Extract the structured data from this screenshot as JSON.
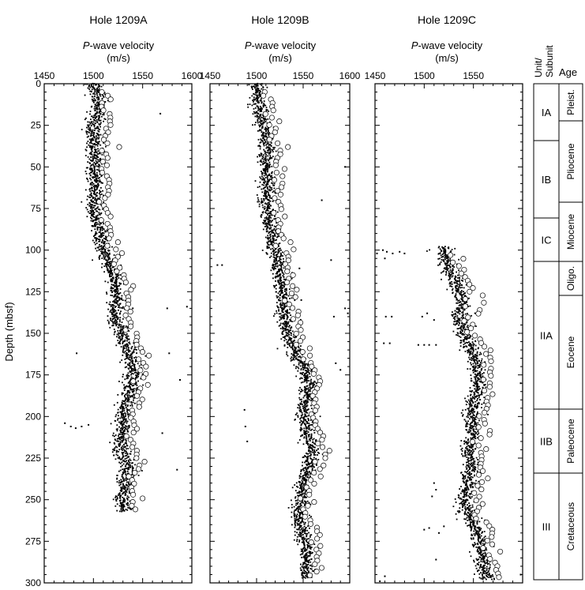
{
  "figure": {
    "ylabel": "Depth (mbsf)",
    "y_ticks": [
      0,
      25,
      50,
      75,
      100,
      125,
      150,
      175,
      200,
      225,
      250,
      275,
      300
    ],
    "ylim": [
      0,
      300
    ],
    "xlabel_main": "-wave velocity",
    "xlabel_italic": "P",
    "xlabel_unit": "(m/s)",
    "colors": {
      "points": "#000000",
      "frame": "#000000",
      "background": "#ffffff"
    }
  },
  "chart_data": [
    {
      "type": "scatter",
      "title": "Hole 1209A",
      "xlim": [
        1450,
        1600
      ],
      "ylim": [
        300,
        0
      ],
      "x_ticks": [
        1450,
        1500,
        1550,
        1600
      ],
      "trend": [
        [
          1,
          1500
        ],
        [
          10,
          1505
        ],
        [
          20,
          1503
        ],
        [
          30,
          1500
        ],
        [
          40,
          1502
        ],
        [
          50,
          1500
        ],
        [
          60,
          1503
        ],
        [
          70,
          1500
        ],
        [
          80,
          1502
        ],
        [
          90,
          1507
        ],
        [
          100,
          1510
        ],
        [
          110,
          1517
        ],
        [
          120,
          1522
        ],
        [
          130,
          1525
        ],
        [
          140,
          1522
        ],
        [
          150,
          1528
        ],
        [
          160,
          1535
        ],
        [
          170,
          1540
        ],
        [
          180,
          1540
        ],
        [
          190,
          1535
        ],
        [
          200,
          1530
        ],
        [
          210,
          1530
        ],
        [
          220,
          1528
        ],
        [
          230,
          1535
        ],
        [
          240,
          1532
        ],
        [
          250,
          1530
        ],
        [
          257,
          1530
        ]
      ],
      "depth_range": [
        0,
        257
      ],
      "spread": 4,
      "outliers": [
        [
          1483,
          162
        ],
        [
          1540,
          135
        ],
        [
          1575,
          135
        ],
        [
          1595,
          134
        ],
        [
          1588,
          178
        ],
        [
          1577,
          162
        ],
        [
          1600,
          190
        ],
        [
          1568,
          18
        ],
        [
          1570,
          210
        ],
        [
          1585,
          232
        ],
        [
          1471,
          204
        ],
        [
          1477,
          206
        ],
        [
          1482,
          207
        ],
        [
          1488,
          206
        ],
        [
          1495,
          205
        ]
      ],
      "circle_offset": 12
    },
    {
      "type": "scatter",
      "title": "Hole 1209B",
      "xlim": [
        1450,
        1600
      ],
      "ylim": [
        300,
        0
      ],
      "x_ticks": [
        1450,
        1500,
        1550,
        1600
      ],
      "trend": [
        [
          1,
          1500
        ],
        [
          10,
          1502
        ],
        [
          20,
          1505
        ],
        [
          30,
          1510
        ],
        [
          40,
          1512
        ],
        [
          50,
          1510
        ],
        [
          60,
          1512
        ],
        [
          70,
          1510
        ],
        [
          80,
          1513
        ],
        [
          90,
          1517
        ],
        [
          100,
          1520
        ],
        [
          110,
          1523
        ],
        [
          120,
          1527
        ],
        [
          130,
          1528
        ],
        [
          140,
          1530
        ],
        [
          150,
          1533
        ],
        [
          160,
          1540
        ],
        [
          170,
          1550
        ],
        [
          180,
          1557
        ],
        [
          190,
          1552
        ],
        [
          200,
          1550
        ],
        [
          210,
          1555
        ],
        [
          220,
          1560
        ],
        [
          230,
          1557
        ],
        [
          240,
          1550
        ],
        [
          250,
          1548
        ],
        [
          260,
          1545
        ],
        [
          270,
          1550
        ],
        [
          280,
          1555
        ],
        [
          290,
          1553
        ],
        [
          297,
          1552
        ]
      ],
      "depth_range": [
        0,
        297
      ],
      "spread": 4,
      "outliers": [
        [
          1458,
          109
        ],
        [
          1463,
          109
        ],
        [
          1546,
          111
        ],
        [
          1580,
          106
        ],
        [
          1598,
          138
        ],
        [
          1595,
          135
        ],
        [
          1583,
          140
        ],
        [
          1585,
          168
        ],
        [
          1590,
          172
        ],
        [
          1487,
          196
        ],
        [
          1488,
          206
        ],
        [
          1490,
          215
        ],
        [
          1548,
          130
        ],
        [
          1595,
          50
        ],
        [
          1570,
          70
        ]
      ],
      "circle_offset": 11
    },
    {
      "type": "scatter",
      "title": "Hole 1209C",
      "xlim": [
        1450,
        1600
      ],
      "ylim": [
        300,
        0
      ],
      "x_ticks": [
        1450,
        1500,
        1550
      ],
      "trend": [
        [
          100,
          1520
        ],
        [
          110,
          1525
        ],
        [
          120,
          1532
        ],
        [
          130,
          1540
        ],
        [
          140,
          1535
        ],
        [
          150,
          1540
        ],
        [
          160,
          1548
        ],
        [
          170,
          1555
        ],
        [
          180,
          1555
        ],
        [
          190,
          1550
        ],
        [
          200,
          1548
        ],
        [
          210,
          1550
        ],
        [
          220,
          1545
        ],
        [
          230,
          1548
        ],
        [
          240,
          1545
        ],
        [
          250,
          1540
        ],
        [
          260,
          1545
        ],
        [
          270,
          1555
        ],
        [
          280,
          1558
        ],
        [
          290,
          1560
        ],
        [
          298,
          1565
        ]
      ],
      "depth_range": [
        98,
        298
      ],
      "spread": 4,
      "outliers": [
        [
          1452,
          102
        ],
        [
          1458,
          100
        ],
        [
          1462,
          101
        ],
        [
          1468,
          102
        ],
        [
          1475,
          101
        ],
        [
          1480,
          102
        ],
        [
          1460,
          105
        ],
        [
          1498,
          140
        ],
        [
          1503,
          138
        ],
        [
          1510,
          142
        ],
        [
          1494,
          157
        ],
        [
          1500,
          157
        ],
        [
          1505,
          157
        ],
        [
          1512,
          157
        ],
        [
          1459,
          156
        ],
        [
          1465,
          156
        ],
        [
          1461,
          140
        ],
        [
          1467,
          140
        ],
        [
          1510,
          240
        ],
        [
          1512,
          244
        ],
        [
          1508,
          248
        ],
        [
          1512,
          286
        ],
        [
          1500,
          268
        ],
        [
          1505,
          267
        ],
        [
          1515,
          270
        ],
        [
          1520,
          266
        ],
        [
          1598,
          180
        ],
        [
          1598,
          295
        ],
        [
          1455,
          299
        ],
        [
          1460,
          296
        ]
      ],
      "circle_offset": 12
    }
  ],
  "units_column": {
    "header_unit": "Unit/",
    "header_subunit": "Subunit",
    "header_age": "Age",
    "units": [
      {
        "label": "IA",
        "top": 0,
        "bottom": 72
      },
      {
        "label": "IB",
        "top": 72,
        "bottom": 170
      },
      {
        "label": "IC",
        "top": 170,
        "bottom": 225
      },
      {
        "label": "IIA",
        "top": 225,
        "bottom": 412
      },
      {
        "label": "IIB",
        "top": 412,
        "bottom": 493
      },
      {
        "label": "III",
        "top": 493,
        "bottom": 628
      }
    ],
    "ages": [
      {
        "label": "Pleist.",
        "top": 0,
        "bottom": 47
      },
      {
        "label": "Pliocene",
        "top": 47,
        "bottom": 150
      },
      {
        "label": "Miocene",
        "top": 150,
        "bottom": 225
      },
      {
        "label": "Oligo.",
        "top": 225,
        "bottom": 268
      },
      {
        "label": "Eocene",
        "top": 268,
        "bottom": 412
      },
      {
        "label": "Paleocene",
        "top": 412,
        "bottom": 493
      },
      {
        "label": "Cretaceous",
        "top": 493,
        "bottom": 628
      }
    ]
  }
}
